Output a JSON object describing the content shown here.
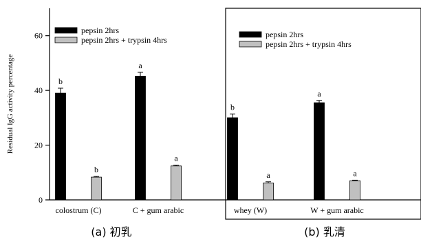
{
  "chart_data": [
    {
      "type": "bar",
      "panel": "a",
      "caption": "(a)  初乳",
      "ylabel": "Residual IgG activity percentage",
      "ylim": [
        0,
        70
      ],
      "yticks": [
        0,
        20,
        40,
        60
      ],
      "legend_placement": "top-left",
      "categories": [
        "colostrum  (C)",
        "C + gum arabic"
      ],
      "series": [
        {
          "name": "pepsin 2hrs",
          "color": "#000000",
          "values": [
            39,
            45.2
          ],
          "errors": [
            1.8,
            1.4
          ],
          "letters": [
            "b",
            "a"
          ]
        },
        {
          "name": "pepsin 2hrs + trypsin 4hrs",
          "color": "#c0c0c0",
          "values": [
            8.3,
            12.4
          ],
          "errors": [
            0.3,
            0.3
          ],
          "letters": [
            "b",
            "a"
          ]
        }
      ]
    },
    {
      "type": "bar",
      "panel": "b",
      "caption": "(b)  乳清",
      "ylim": [
        0,
        70
      ],
      "legend_placement": "top-left",
      "categories": [
        "whey  (W)",
        "W + gum arabic"
      ],
      "series": [
        {
          "name": "pepsin 2hrs",
          "color": "#000000",
          "values": [
            30,
            35.5
          ],
          "errors": [
            1.4,
            0.8
          ],
          "letters": [
            "b",
            "a"
          ]
        },
        {
          "name": "pepsin 2hrs + trypsin 4hrs",
          "color": "#c0c0c0",
          "values": [
            6.2,
            7.0
          ],
          "errors": [
            0.4,
            0.2
          ],
          "letters": [
            "a",
            "a"
          ]
        }
      ]
    }
  ]
}
